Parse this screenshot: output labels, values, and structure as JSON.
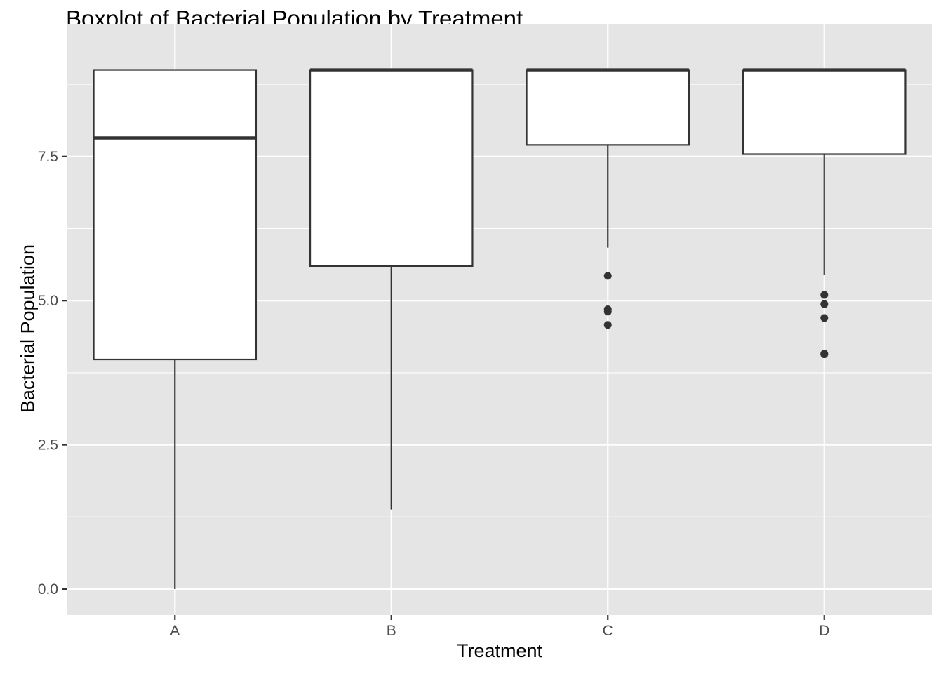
{
  "chart_data": {
    "type": "boxplot",
    "title": "Boxplot of Bacterial Population by Treatment",
    "xlabel": "Treatment",
    "ylabel": "Bacterial Population",
    "categories": [
      "A",
      "B",
      "C",
      "D"
    ],
    "ylim": [
      -0.45,
      9.8
    ],
    "yticks": [
      0.0,
      2.5,
      5.0,
      7.5
    ],
    "ytick_labels": [
      "0.0",
      "2.5",
      "5.0",
      "7.5"
    ],
    "grid": true,
    "legend": "none",
    "boxes": [
      {
        "category": "A",
        "whisker_low": 0.0,
        "q1": 3.98,
        "median": 7.82,
        "q3": 9.0,
        "whisker_high": 9.0,
        "outliers": []
      },
      {
        "category": "B",
        "whisker_low": 1.38,
        "q1": 5.6,
        "median": 9.0,
        "q3": 9.0,
        "whisker_high": 9.0,
        "outliers": []
      },
      {
        "category": "C",
        "whisker_low": 5.92,
        "q1": 7.7,
        "median": 9.0,
        "q3": 9.0,
        "whisker_high": 9.0,
        "outliers": [
          5.43,
          4.85,
          4.81,
          4.58
        ]
      },
      {
        "category": "D",
        "whisker_low": 5.45,
        "q1": 7.54,
        "median": 9.0,
        "q3": 9.0,
        "whisker_high": 9.0,
        "outliers": [
          5.1,
          4.94,
          4.7,
          4.08,
          4.07
        ]
      }
    ],
    "colors": {
      "panel_background": "#E5E5E5",
      "grid_major": "#FFFFFF",
      "grid_minor": "#F2F2F2",
      "box_fill": "#FFFFFF",
      "box_line": "#333333",
      "outlier": "#333333",
      "tick_text": "#4D4D4D"
    }
  }
}
